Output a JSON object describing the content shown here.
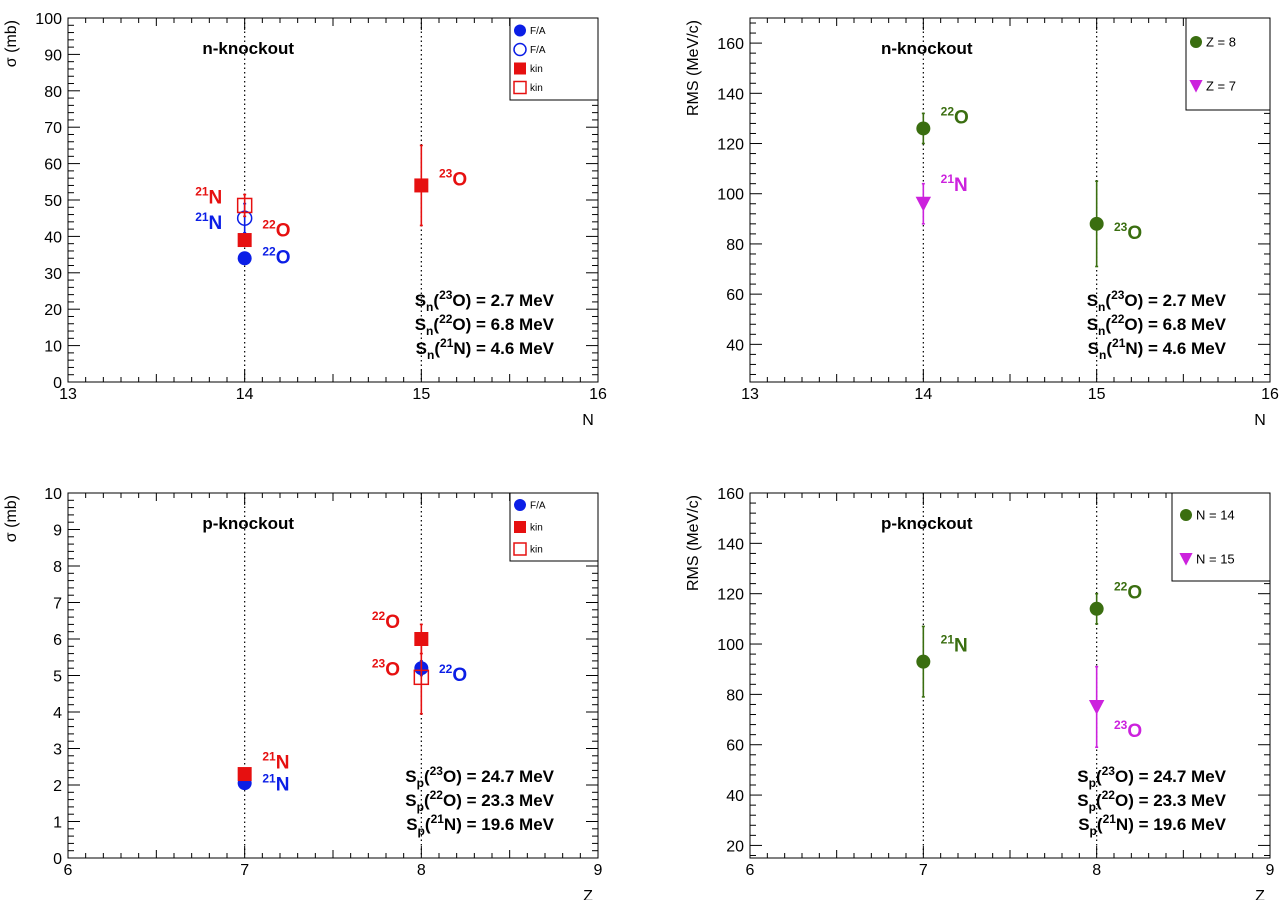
{
  "chart_data": [
    {
      "type": "scatter",
      "panel": "top-left",
      "xlabel": "N",
      "ylabel": "σ (mb)",
      "xlim": [
        13,
        16
      ],
      "ylim": [
        0,
        100
      ],
      "xticks": [
        13,
        14,
        15,
        16
      ],
      "yticks": [
        0,
        10,
        20,
        30,
        40,
        50,
        60,
        70,
        80,
        90,
        100
      ],
      "vlines": [
        14,
        15
      ],
      "title": "n-knockout",
      "legend_position": "top-right",
      "series": [
        {
          "name": "F/A",
          "marker": "circle-filled",
          "color": "#0b1ee6",
          "points": [
            {
              "x": 14,
              "y": 34,
              "err": 1
            }
          ]
        },
        {
          "name": "F/A",
          "marker": "circle-open",
          "color": "#0b1ee6",
          "points": [
            {
              "x": 14,
              "y": 45,
              "err": 4
            }
          ]
        },
        {
          "name": "kin",
          "marker": "square-filled",
          "color": "#e61010",
          "points": [
            {
              "x": 14,
              "y": 39,
              "err": 1.5
            },
            {
              "x": 15,
              "y": 54,
              "err": 11
            }
          ]
        },
        {
          "name": "kin",
          "marker": "square-open",
          "color": "#e61010",
          "points": [
            {
              "x": 14,
              "y": 48.5,
              "err": 3
            }
          ]
        }
      ],
      "annotations": [
        {
          "mass": "21",
          "symbol": "N",
          "color": "#e61010",
          "x": 13.72,
          "y": 49
        },
        {
          "mass": "21",
          "symbol": "N",
          "color": "#0b1ee6",
          "x": 13.72,
          "y": 42
        },
        {
          "mass": "22",
          "symbol": "O",
          "color": "#e61010",
          "x": 14.1,
          "y": 40
        },
        {
          "mass": "22",
          "symbol": "O",
          "color": "#0b1ee6",
          "x": 14.1,
          "y": 32.5
        },
        {
          "mass": "23",
          "symbol": "O",
          "color": "#e61010",
          "x": 15.1,
          "y": 54
        }
      ],
      "energies": [
        {
          "sym": "n",
          "mass": "23",
          "el": "O",
          "val": "2.7 MeV"
        },
        {
          "sym": "n",
          "mass": "22",
          "el": "O",
          "val": "6.8 MeV"
        },
        {
          "sym": "n",
          "mass": "21",
          "el": "N",
          "val": "4.6 MeV"
        }
      ]
    },
    {
      "type": "scatter",
      "panel": "top-right",
      "xlabel": "N",
      "ylabel": "RMS (MeV/c)",
      "xlim": [
        13,
        16
      ],
      "ylim": [
        25,
        170
      ],
      "xticks": [
        13,
        14,
        15,
        16
      ],
      "yticks": [
        40,
        60,
        80,
        100,
        120,
        140,
        160
      ],
      "vlines": [
        14,
        15
      ],
      "title": "n-knockout",
      "legend_position": "top-right",
      "series": [
        {
          "name": "Z = 8",
          "marker": "circle-filled",
          "color": "#3a6e10",
          "points": [
            {
              "x": 14,
              "y": 126,
              "err": 6
            },
            {
              "x": 15,
              "y": 88,
              "err": 17
            }
          ]
        },
        {
          "name": "Z = 7",
          "marker": "triangle-down",
          "color": "#cc22dd",
          "points": [
            {
              "x": 14,
              "y": 96,
              "err": 8
            }
          ]
        }
      ],
      "annotations": [
        {
          "mass": "22",
          "symbol": "O",
          "color": "#3a6e10",
          "x": 14.1,
          "y": 128
        },
        {
          "mass": "21",
          "symbol": "N",
          "color": "#cc22dd",
          "x": 14.1,
          "y": 101
        },
        {
          "mass": "23",
          "symbol": "O",
          "color": "#3a6e10",
          "x": 15.1,
          "y": 82
        }
      ],
      "energies": [
        {
          "sym": "n",
          "mass": "23",
          "el": "O",
          "val": "2.7 MeV"
        },
        {
          "sym": "n",
          "mass": "22",
          "el": "O",
          "val": "6.8 MeV"
        },
        {
          "sym": "n",
          "mass": "21",
          "el": "N",
          "val": "4.6 MeV"
        }
      ]
    },
    {
      "type": "scatter",
      "panel": "bottom-left",
      "xlabel": "Z",
      "ylabel": "σ (mb)",
      "xlim": [
        6,
        9
      ],
      "ylim": [
        0,
        10
      ],
      "xticks": [
        6,
        7,
        8,
        9
      ],
      "yticks": [
        0,
        1,
        2,
        3,
        4,
        5,
        6,
        7,
        8,
        9,
        10
      ],
      "vlines": [
        7,
        8
      ],
      "title": "p-knockout",
      "legend_position": "top-right",
      "series": [
        {
          "name": "F/A",
          "marker": "circle-filled",
          "color": "#0b1ee6",
          "points": [
            {
              "x": 7,
              "y": 2.05,
              "err": 0.15
            },
            {
              "x": 8,
              "y": 5.2,
              "err": 0.2
            }
          ]
        },
        {
          "name": "kin",
          "marker": "square-filled",
          "color": "#e61010",
          "points": [
            {
              "x": 7,
              "y": 2.3,
              "err": 0.1
            },
            {
              "x": 8,
              "y": 6.0,
              "err": 0.4
            }
          ]
        },
        {
          "name": "kin",
          "marker": "square-open",
          "color": "#e61010",
          "points": [
            {
              "x": 8,
              "y": 4.95,
              "err": 1.0
            }
          ]
        }
      ],
      "annotations": [
        {
          "mass": "21",
          "symbol": "N",
          "color": "#e61010",
          "x": 7.1,
          "y": 2.45
        },
        {
          "mass": "21",
          "symbol": "N",
          "color": "#0b1ee6",
          "x": 7.1,
          "y": 1.85
        },
        {
          "mass": "22",
          "symbol": "O",
          "color": "#e61010",
          "x": 7.72,
          "y": 6.3
        },
        {
          "mass": "23",
          "symbol": "O",
          "color": "#e61010",
          "x": 7.72,
          "y": 5.0
        },
        {
          "mass": "22",
          "symbol": "O",
          "color": "#0b1ee6",
          "x": 8.1,
          "y": 4.85
        }
      ],
      "energies": [
        {
          "sym": "p",
          "mass": "23",
          "el": "O",
          "val": "24.7 MeV"
        },
        {
          "sym": "p",
          "mass": "22",
          "el": "O",
          "val": "23.3 MeV"
        },
        {
          "sym": "p",
          "mass": "21",
          "el": "N",
          "val": "19.6 MeV"
        }
      ]
    },
    {
      "type": "scatter",
      "panel": "bottom-right",
      "xlabel": "Z",
      "ylabel": "RMS (MeV/c)",
      "xlim": [
        6,
        9
      ],
      "ylim": [
        15,
        160
      ],
      "xticks": [
        6,
        7,
        8,
        9
      ],
      "yticks": [
        20,
        40,
        60,
        80,
        100,
        120,
        140,
        160
      ],
      "vlines": [
        7,
        8
      ],
      "title": "p-knockout",
      "legend_position": "top-right",
      "series": [
        {
          "name": "N = 14",
          "marker": "circle-filled",
          "color": "#3a6e10",
          "points": [
            {
              "x": 7,
              "y": 93,
              "err": 14
            },
            {
              "x": 8,
              "y": 114,
              "err": 6
            }
          ]
        },
        {
          "name": "N = 15",
          "marker": "triangle-down",
          "color": "#cc22dd",
          "points": [
            {
              "x": 8,
              "y": 75,
              "err": 16
            }
          ]
        }
      ],
      "annotations": [
        {
          "mass": "21",
          "symbol": "N",
          "color": "#3a6e10",
          "x": 7.1,
          "y": 97
        },
        {
          "mass": "22",
          "symbol": "O",
          "color": "#3a6e10",
          "x": 8.1,
          "y": 118
        },
        {
          "mass": "23",
          "symbol": "O",
          "color": "#cc22dd",
          "x": 8.1,
          "y": 63
        }
      ],
      "energies": [
        {
          "sym": "p",
          "mass": "23",
          "el": "O",
          "val": "24.7 MeV"
        },
        {
          "sym": "p",
          "mass": "22",
          "el": "O",
          "val": "23.3 MeV"
        },
        {
          "sym": "p",
          "mass": "21",
          "el": "N",
          "val": "19.6 MeV"
        }
      ]
    }
  ]
}
